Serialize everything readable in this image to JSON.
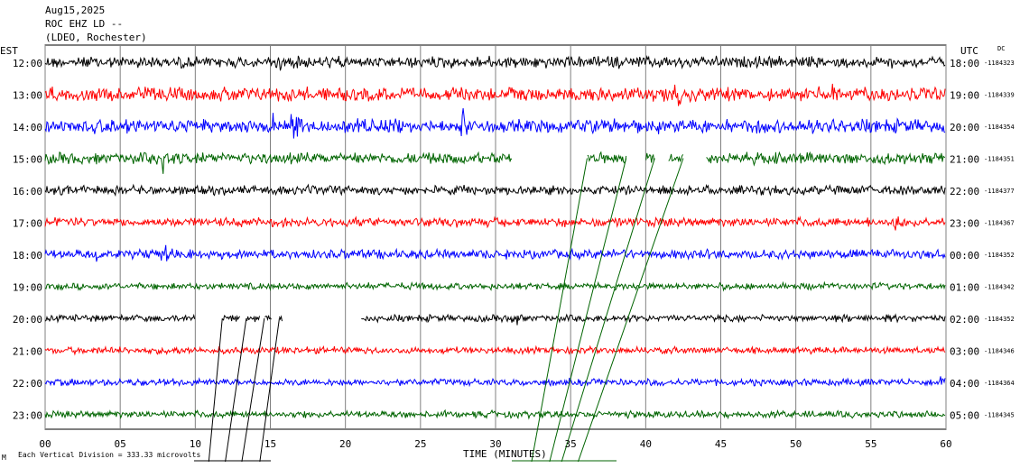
{
  "header": {
    "date": "Aug15,2025",
    "station": "ROC EHZ LD --",
    "network": "(LDEO, Rochester)"
  },
  "left_axis_label": "EST",
  "right_axis_label": "UTC",
  "dc_label": "DC",
  "footer": {
    "scale_note": "Each Vertical Division =  333.33 microvolts",
    "corner_mark": "M"
  },
  "colors": {
    "black": "#000000",
    "red": "#ff0000",
    "blue": "#0000ff",
    "green": "#006400",
    "grid": "#808080"
  },
  "chart_data": {
    "type": "line",
    "title": "",
    "xlabel": "TIME (MINUTES)",
    "ylabel": "",
    "xlim": [
      0,
      60
    ],
    "x_ticks": [
      "00",
      "05",
      "10",
      "15",
      "20",
      "25",
      "30",
      "35",
      "40",
      "45",
      "50",
      "55",
      "60"
    ],
    "x_grid_minutes": [
      0,
      5,
      10,
      15,
      20,
      25,
      30,
      35,
      40,
      45,
      50,
      55,
      60
    ],
    "color_cycle": [
      "black",
      "red",
      "blue",
      "green"
    ],
    "rows": [
      {
        "est": "12:00",
        "utc": "18:00",
        "dc": "-1184323",
        "color": "black",
        "amplitude": 5,
        "gaps": [],
        "events": [
          {
            "minute": 8.6,
            "amp": 10
          },
          {
            "minute": 15.6,
            "amp": 9
          }
        ]
      },
      {
        "est": "13:00",
        "utc": "19:00",
        "dc": "-1184339",
        "color": "red",
        "amplitude": 6,
        "gaps": [],
        "events": [
          {
            "minute": 42.1,
            "amp": 12
          },
          {
            "minute": 52.5,
            "amp": 10
          }
        ]
      },
      {
        "est": "14:00",
        "utc": "20:00",
        "dc": "-1184354",
        "color": "blue",
        "amplitude": 6,
        "gaps": [],
        "events": [
          {
            "minute": 15.0,
            "amp": 16
          },
          {
            "minute": 16.6,
            "amp": 14
          },
          {
            "minute": 21.4,
            "amp": 18
          },
          {
            "minute": 27.9,
            "amp": 16
          }
        ]
      },
      {
        "est": "15:00",
        "utc": "21:00",
        "dc": "-1184351",
        "color": "green",
        "amplitude": 5,
        "gaps": [
          [
            31.1,
            36.1
          ],
          [
            38.7,
            40.0
          ],
          [
            40.6,
            41.5
          ],
          [
            42.5,
            44.0
          ]
        ],
        "events": [
          {
            "minute": 7.8,
            "amp": 18
          }
        ]
      },
      {
        "est": "16:00",
        "utc": "22:00",
        "dc": "-1184377",
        "color": "black",
        "amplitude": 4,
        "gaps": [],
        "events": []
      },
      {
        "est": "17:00",
        "utc": "23:00",
        "dc": "-1184367",
        "color": "red",
        "amplitude": 4,
        "gaps": [],
        "events": [
          {
            "minute": 56.8,
            "amp": 12
          }
        ]
      },
      {
        "est": "18:00",
        "utc": "00:00",
        "dc": "-1184352",
        "color": "blue",
        "amplitude": 4,
        "gaps": [],
        "events": [
          {
            "minute": 8.0,
            "amp": 10
          },
          {
            "minute": 3.5,
            "amp": 8
          }
        ]
      },
      {
        "est": "19:00",
        "utc": "01:00",
        "dc": "-1184342",
        "color": "green",
        "amplitude": 3,
        "gaps": [],
        "events": []
      },
      {
        "est": "20:00",
        "utc": "02:00",
        "dc": "-1184352",
        "color": "black",
        "amplitude": 3,
        "gaps": [
          [
            10.0,
            11.8
          ],
          [
            13.0,
            13.4
          ],
          [
            14.3,
            14.6
          ],
          [
            15.1,
            15.6
          ],
          [
            15.8,
            21.0
          ]
        ],
        "events": [
          {
            "minute": 31.4,
            "amp": 10
          }
        ]
      },
      {
        "est": "21:00",
        "utc": "03:00",
        "dc": "-1184346",
        "color": "red",
        "amplitude": 3,
        "gaps": [],
        "events": []
      },
      {
        "est": "22:00",
        "utc": "04:00",
        "dc": "-1184364",
        "color": "blue",
        "amplitude": 3,
        "gaps": [],
        "events": [
          {
            "minute": 59.7,
            "amp": 8
          }
        ]
      },
      {
        "est": "23:00",
        "utc": "05:00",
        "dc": "-1184345",
        "color": "green",
        "amplitude": 3,
        "gaps": [],
        "events": []
      }
    ],
    "connector_lines": [
      {
        "color": "black",
        "from_row": 8,
        "from_minute": 11.8,
        "to_minute": 10.9
      },
      {
        "color": "black",
        "from_row": 8,
        "from_minute": 13.4,
        "to_minute": 12.0
      },
      {
        "color": "black",
        "from_row": 8,
        "from_minute": 14.6,
        "to_minute": 13.1
      },
      {
        "color": "black",
        "from_row": 8,
        "from_minute": 15.6,
        "to_minute": 14.3
      },
      {
        "color": "green",
        "from_row": 3,
        "from_minute": 36.1,
        "to_minute": 32.4
      },
      {
        "color": "green",
        "from_row": 3,
        "from_minute": 38.7,
        "to_minute": 33.6
      },
      {
        "color": "green",
        "from_row": 3,
        "from_minute": 40.6,
        "to_minute": 34.4
      },
      {
        "color": "green",
        "from_row": 3,
        "from_minute": 42.5,
        "to_minute": 35.5
      }
    ]
  }
}
